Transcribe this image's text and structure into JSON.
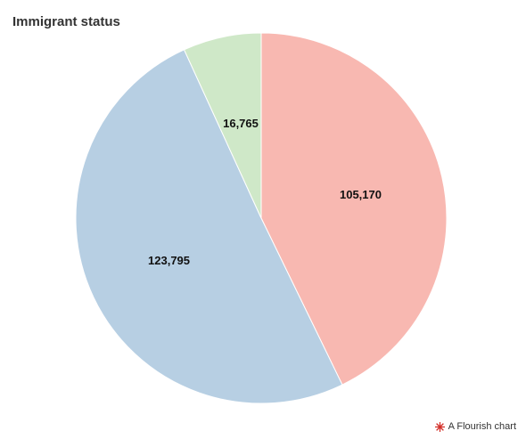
{
  "chart_data": {
    "type": "pie",
    "title": "Immigrant status",
    "start_angle_deg": 0,
    "direction": "clockwise",
    "slices": [
      {
        "value": 105170,
        "label": "105,170",
        "color": "#f8b8b1"
      },
      {
        "value": 123795,
        "label": "123,795",
        "color": "#b7cfe3"
      },
      {
        "value": 16765,
        "label": "16,765",
        "color": "#cfe8c8"
      }
    ]
  },
  "footer": {
    "credit_label": "A Flourish chart",
    "credit_icon": "flourish-logo-icon"
  },
  "colors": {
    "title": "#333333",
    "slice_border": "#ffffff",
    "credit_icon": "#d4322c"
  }
}
